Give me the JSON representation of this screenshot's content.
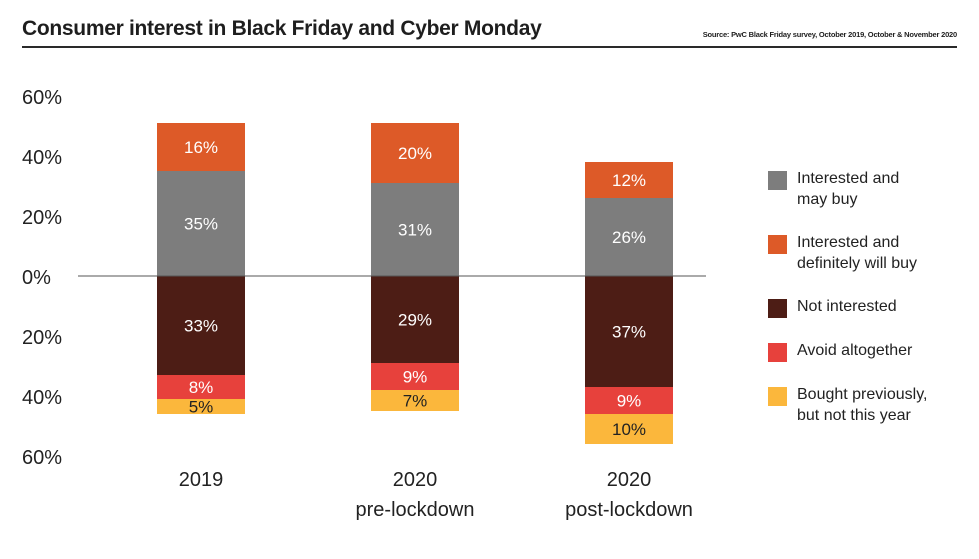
{
  "header": {
    "title": "Consumer interest in Black Friday and Cyber Monday",
    "source": "Source: PwC Black Friday survey, October 2019, October & November 2020"
  },
  "chart_data": {
    "type": "bar",
    "stacked": "diverging",
    "categories": [
      "2019",
      "2020\npre-lockdown",
      "2020\npost-lockdown"
    ],
    "y_ticks": [
      "60%",
      "40%",
      "20%",
      "0%",
      "20%",
      "40%",
      "60%"
    ],
    "ylim": [
      -60,
      60
    ],
    "grid": false,
    "legend_position": "right",
    "series": [
      {
        "name": "Interested and\nmay buy",
        "direction": "up",
        "color": "#7d7d7d",
        "label_color": "#ffffff",
        "values": [
          35,
          31,
          26
        ]
      },
      {
        "name": "Interested and\ndefinitely will buy",
        "direction": "up",
        "color": "#dd5a28",
        "label_color": "#ffffff",
        "values": [
          16,
          20,
          12
        ]
      },
      {
        "name": "Not interested",
        "direction": "down",
        "color": "#4d1d15",
        "label_color": "#ffffff",
        "values": [
          33,
          29,
          37
        ]
      },
      {
        "name": "Avoid altogether",
        "direction": "down",
        "color": "#e7413c",
        "label_color": "#ffffff",
        "values": [
          8,
          9,
          9
        ]
      },
      {
        "name": "Bought previously,\nbut not this year",
        "direction": "down",
        "color": "#fbb73c",
        "label_color": "#222222",
        "values": [
          5,
          7,
          10
        ]
      }
    ]
  }
}
